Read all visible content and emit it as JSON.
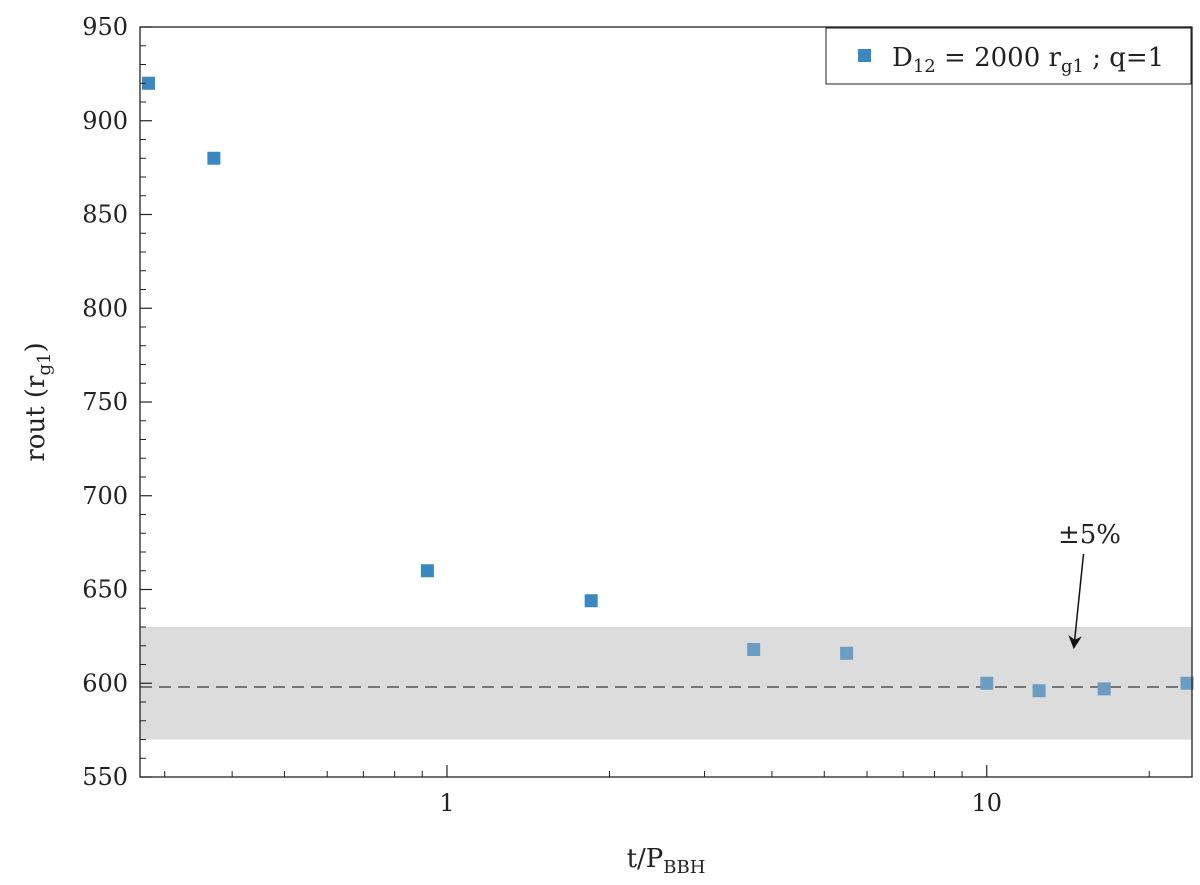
{
  "chart_data": {
    "type": "scatter",
    "title": "",
    "x_scale": "log",
    "xlim": [
      0.27,
      24
    ],
    "ylim": [
      550,
      950
    ],
    "xlabel": {
      "main": "t/P",
      "sub": "BBH"
    },
    "ylabel": {
      "main": "rout (r",
      "sub": "g1",
      "close": ")"
    },
    "x_ticks": [
      1,
      10
    ],
    "x_tick_labels": [
      "1",
      "10"
    ],
    "y_ticks": [
      550,
      600,
      650,
      700,
      750,
      800,
      850,
      900,
      950
    ],
    "y_tick_labels": [
      "550",
      "600",
      "650",
      "700",
      "750",
      "800",
      "850",
      "900",
      "950"
    ],
    "grid": false,
    "legend_position": "top-right",
    "series": [
      {
        "name": "D12 = 2000 rg1 ; q=1",
        "name_parts": [
          "D",
          "12",
          " = 2000 r",
          "g1",
          " ; q=1"
        ],
        "marker": "square",
        "color": "#3b87c0",
        "points": [
          {
            "x": 0.28,
            "y": 920
          },
          {
            "x": 0.37,
            "y": 880
          },
          {
            "x": 0.92,
            "y": 660
          },
          {
            "x": 1.85,
            "y": 644
          },
          {
            "x": 3.7,
            "y": 618
          },
          {
            "x": 5.5,
            "y": 616
          },
          {
            "x": 10,
            "y": 600
          },
          {
            "x": 12.5,
            "y": 596
          },
          {
            "x": 16.5,
            "y": 597
          },
          {
            "x": 23.5,
            "y": 600
          }
        ],
        "faded_from_x": 3.7,
        "faded_color": "#6b9dc2"
      }
    ],
    "reference_line": {
      "y": 598,
      "style": "dashed",
      "color": "#555555"
    },
    "band": {
      "y_min": 570,
      "y_max": 630,
      "color": "#dcdcdc"
    },
    "annotations": [
      {
        "text": "±5%",
        "text_x": 15.5,
        "text_y": 670,
        "arrow_to_x": 14.5,
        "arrow_to_y": 620
      }
    ]
  }
}
